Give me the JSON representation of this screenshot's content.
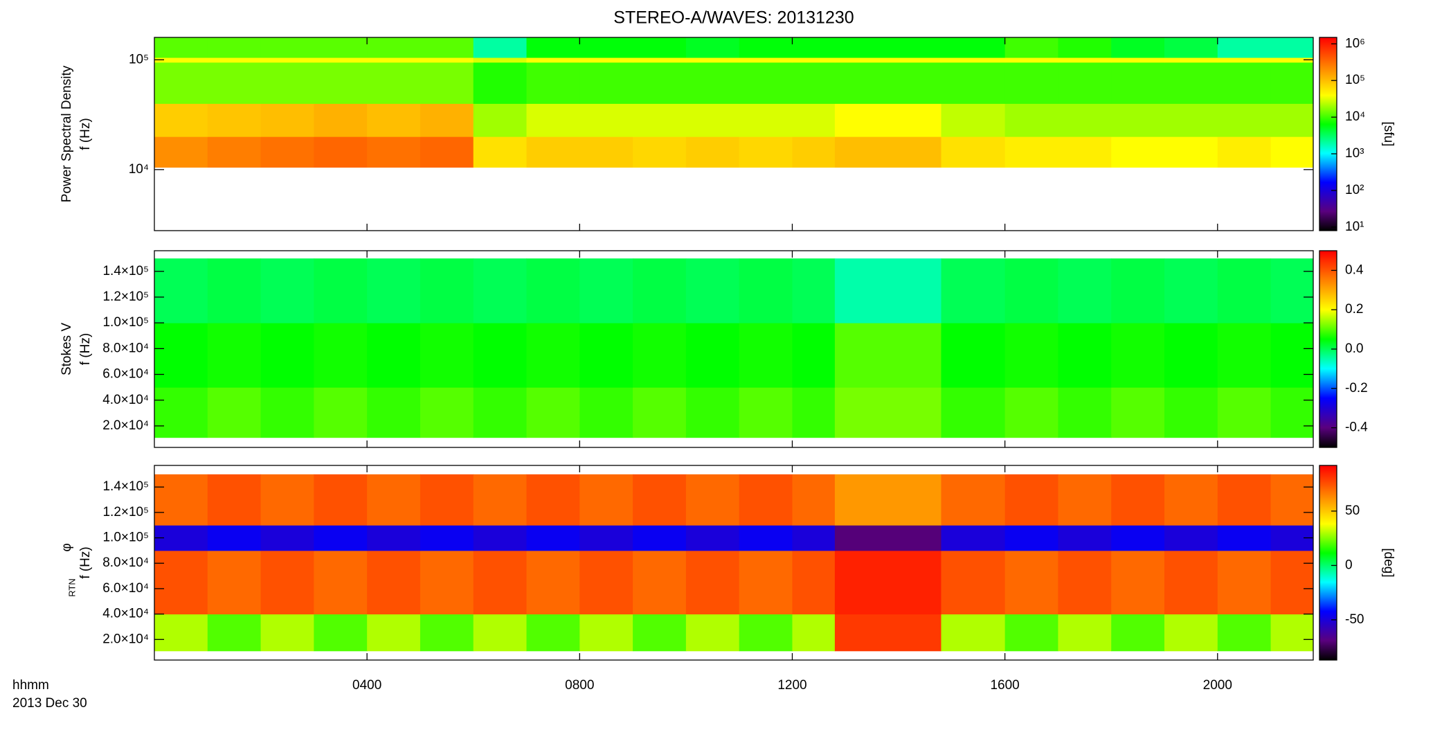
{
  "chart_data": [
    {
      "type": "heatmap",
      "title": "STEREO-A/WAVES: 20131230",
      "ylabel": [
        "Power Spectral Density",
        "f (Hz)"
      ],
      "zlabel": "[sfu]",
      "yscale": "log",
      "zscale": "log",
      "colormap": "rainbow",
      "xlim": [
        0,
        21.8
      ],
      "xticks": [
        4,
        8,
        12,
        16,
        20
      ],
      "ylim": [
        2780,
        160000
      ],
      "yticks": [
        {
          "value": 10000,
          "label": "10⁴"
        },
        {
          "value": 100000,
          "label": "10⁵"
        }
      ],
      "zlim": [
        8,
        1500000
      ],
      "zticks": [
        {
          "value": 10,
          "label": "10¹"
        },
        {
          "value": 100,
          "label": "10²"
        },
        {
          "value": 1000,
          "label": "10³"
        },
        {
          "value": 10000,
          "label": "10⁴"
        },
        {
          "value": 100000,
          "label": "10⁵"
        },
        {
          "value": 1000000,
          "label": "10⁶"
        }
      ],
      "x_edges": [
        0,
        1,
        2,
        3,
        4,
        5,
        6,
        7,
        8,
        9,
        10,
        11,
        12,
        12.8,
        14.8,
        16,
        17,
        18,
        19,
        20,
        21,
        21.8
      ],
      "y_edges": [
        10500,
        20000,
        40000,
        95000,
        105000,
        160000
      ],
      "z": [
        [
          200000,
          250000,
          300000,
          350000,
          300000,
          350000,
          60000,
          80000,
          80000,
          70000,
          80000,
          70000,
          80000,
          100000,
          60000,
          50000,
          50000,
          40000,
          40000,
          50000,
          40000
        ],
        [
          80000,
          90000,
          100000,
          120000,
          100000,
          120000,
          20000,
          30000,
          30000,
          30000,
          30000,
          30000,
          30000,
          40000,
          25000,
          20000,
          20000,
          20000,
          20000,
          20000,
          20000
        ],
        [
          15000,
          15000,
          15000,
          15000,
          15000,
          15000,
          8000,
          10000,
          10000,
          10000,
          10000,
          10000,
          10000,
          10000,
          10000,
          10000,
          10000,
          10000,
          10000,
          10000,
          10000
        ],
        [
          40000,
          40000,
          40000,
          40000,
          40000,
          40000,
          30000,
          40000,
          40000,
          40000,
          40000,
          40000,
          40000,
          40000,
          40000,
          40000,
          40000,
          40000,
          40000,
          40000,
          40000
        ],
        [
          12000,
          12000,
          12000,
          12000,
          12000,
          12000,
          2000,
          6000,
          6000,
          6000,
          5000,
          6000,
          6000,
          6000,
          6000,
          10000,
          8000,
          5000,
          4000,
          2000,
          2000
        ]
      ]
    },
    {
      "type": "heatmap",
      "ylabel": [
        "Stokes V",
        "f (Hz)"
      ],
      "yscale": "linear",
      "zscale": "linear",
      "colormap": "rainbow",
      "xlim": [
        0,
        21.8
      ],
      "xticks": [
        4,
        8,
        12,
        16,
        20
      ],
      "ylim": [
        3300,
        156000
      ],
      "yticks": [
        {
          "value": 20000,
          "label": "2.0×10⁴"
        },
        {
          "value": 40000,
          "label": "4.0×10⁴"
        },
        {
          "value": 60000,
          "label": "6.0×10⁴"
        },
        {
          "value": 80000,
          "label": "8.0×10⁴"
        },
        {
          "value": 100000,
          "label": "1.0×10⁵"
        },
        {
          "value": 120000,
          "label": "1.2×10⁵"
        },
        {
          "value": 140000,
          "label": "1.4×10⁵"
        }
      ],
      "zlim": [
        -0.5,
        0.5
      ],
      "zticks": [
        -0.4,
        -0.2,
        {
          "value": 0,
          "label": "0.0"
        },
        0.2,
        0.4
      ],
      "x_edges": [
        0,
        1,
        2,
        3,
        4,
        5,
        6,
        7,
        8,
        9,
        10,
        11,
        12,
        12.8,
        14.8,
        16,
        17,
        18,
        19,
        20,
        21,
        21.8
      ],
      "y_edges": [
        11000,
        50000,
        100000,
        150000
      ],
      "z": [
        [
          0.08,
          0.1,
          0.08,
          0.1,
          0.08,
          0.1,
          0.08,
          0.1,
          0.08,
          0.1,
          0.08,
          0.1,
          0.08,
          0.12,
          0.08,
          0.1,
          0.08,
          0.1,
          0.08,
          0.1,
          0.08
        ],
        [
          0.05,
          0.06,
          0.05,
          0.06,
          0.05,
          0.06,
          0.05,
          0.06,
          0.05,
          0.06,
          0.05,
          0.06,
          0.05,
          0.1,
          0.05,
          0.06,
          0.05,
          0.06,
          0.05,
          0.06,
          0.05
        ],
        [
          0.0,
          0.01,
          0.0,
          0.01,
          0.0,
          0.01,
          0.0,
          0.01,
          0.0,
          0.01,
          0.0,
          0.01,
          0.0,
          -0.05,
          0.0,
          0.01,
          0.0,
          0.01,
          0.0,
          0.01,
          0.0
        ]
      ]
    },
    {
      "type": "heatmap",
      "ylabel": [
        "φ",
        "f (Hz)"
      ],
      "ylabel_sub": "RTN",
      "zlabel": "[deg]",
      "x_label": "hhmm",
      "x_sublabel": "2013 Dec 30",
      "yscale": "linear",
      "zscale": "linear",
      "colormap": "rainbow",
      "xlim": [
        0,
        21.8
      ],
      "xticks": [
        {
          "value": 4,
          "label": "0400"
        },
        {
          "value": 8,
          "label": "0800"
        },
        {
          "value": 12,
          "label": "1200"
        },
        {
          "value": 16,
          "label": "1600"
        },
        {
          "value": 20,
          "label": "2000"
        }
      ],
      "ylim": [
        3800,
        157000
      ],
      "yticks": [
        {
          "value": 20000,
          "label": "2.0×10⁴"
        },
        {
          "value": 40000,
          "label": "4.0×10⁴"
        },
        {
          "value": 60000,
          "label": "6.0×10⁴"
        },
        {
          "value": 80000,
          "label": "8.0×10⁴"
        },
        {
          "value": 100000,
          "label": "1.0×10⁵"
        },
        {
          "value": 120000,
          "label": "1.2×10⁵"
        },
        {
          "value": 140000,
          "label": "1.4×10⁵"
        }
      ],
      "zlim": [
        -87,
        92
      ],
      "zticks": [
        -50,
        0,
        50
      ],
      "x_edges": [
        0,
        1,
        2,
        3,
        4,
        5,
        6,
        7,
        8,
        9,
        10,
        11,
        12,
        12.8,
        14.8,
        16,
        17,
        18,
        19,
        20,
        21,
        21.8
      ],
      "y_edges": [
        11000,
        40000,
        90000,
        110000,
        150000
      ],
      "z": [
        [
          30,
          20,
          30,
          20,
          30,
          20,
          30,
          20,
          30,
          20,
          30,
          20,
          30,
          80,
          30,
          20,
          30,
          20,
          30,
          20,
          30
        ],
        [
          75,
          70,
          75,
          70,
          75,
          70,
          75,
          70,
          75,
          70,
          75,
          70,
          75,
          85,
          75,
          70,
          75,
          70,
          75,
          70,
          75
        ],
        [
          -50,
          -45,
          -50,
          -45,
          -50,
          -45,
          -50,
          -45,
          -50,
          -45,
          -50,
          -45,
          -50,
          -70,
          -50,
          -45,
          -50,
          -45,
          -50,
          -45,
          -50
        ],
        [
          70,
          75,
          70,
          75,
          70,
          75,
          70,
          75,
          70,
          75,
          70,
          75,
          70,
          60,
          70,
          75,
          70,
          75,
          70,
          75,
          70
        ]
      ]
    }
  ]
}
